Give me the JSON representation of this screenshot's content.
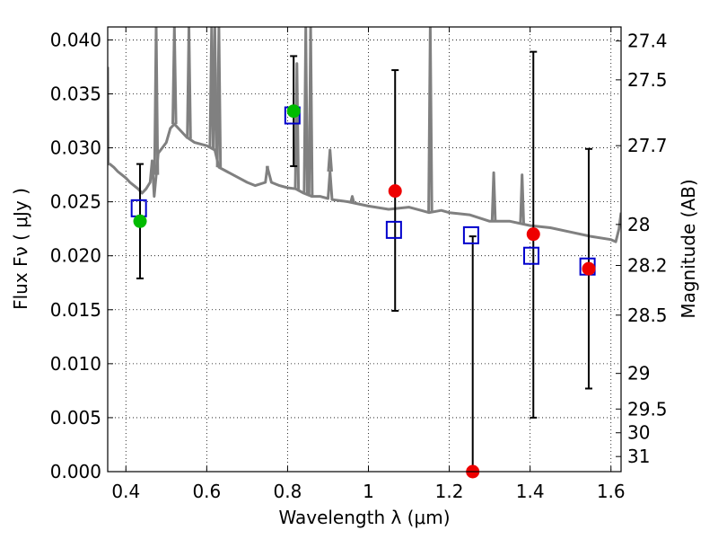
{
  "chart_data": {
    "type": "scatter",
    "xlabel": "Wavelength  λ (μm)",
    "ylabel": "Flux  Fν  ( μJy )",
    "ylabel_right": "Magnitude (AB)",
    "xlim": [
      0.355,
      1.625
    ],
    "ylim": [
      0.0,
      0.0412
    ],
    "grid": true,
    "x_ticks": [
      0.4,
      0.6,
      0.8,
      1.0,
      1.2,
      1.4,
      1.6
    ],
    "x_tick_labels": [
      "0.4",
      "0.6",
      "0.8",
      "1",
      "1.2",
      "1.4",
      "1.6"
    ],
    "y_ticks": [
      0.0,
      0.005,
      0.01,
      0.015,
      0.02,
      0.025,
      0.03,
      0.035,
      0.04
    ],
    "y_tick_labels": [
      "0.000",
      "0.005",
      "0.010",
      "0.015",
      "0.020",
      "0.025",
      "0.030",
      "0.035",
      "0.040"
    ],
    "mag_ticks": [
      {
        "label": "27.4",
        "flux": 0.0399
      },
      {
        "label": "27.5",
        "flux": 0.0363
      },
      {
        "label": "27.7",
        "flux": 0.0302
      },
      {
        "label": "28",
        "flux": 0.0229
      },
      {
        "label": "28.2",
        "flux": 0.0191
      },
      {
        "label": "28.5",
        "flux": 0.0145
      },
      {
        "label": "29",
        "flux": 0.0091
      },
      {
        "label": "29.5",
        "flux": 0.0058
      },
      {
        "label": "30",
        "flux": 0.0036
      },
      {
        "label": "31",
        "flux": 0.0014
      }
    ],
    "colors": {
      "model": "#808080",
      "model_photometry": "#0000cc",
      "detected": "#00bb00",
      "nondetected": "#ee0000",
      "errorbar": "#000000"
    },
    "model_spectrum": {
      "x": [
        0.355,
        0.356,
        0.36,
        0.37,
        0.38,
        0.39,
        0.4,
        0.41,
        0.42,
        0.43,
        0.44,
        0.45,
        0.455,
        0.46,
        0.465,
        0.47,
        0.48,
        0.49,
        0.5,
        0.51,
        0.52,
        0.53,
        0.55,
        0.57,
        0.6,
        0.62,
        0.63,
        0.65,
        0.68,
        0.7,
        0.72,
        0.745,
        0.75,
        0.76,
        0.78,
        0.8,
        0.82,
        0.84,
        0.86,
        0.88,
        0.9,
        0.905,
        0.91,
        0.95,
        1.0,
        1.05,
        1.1,
        1.13,
        1.15,
        1.18,
        1.2,
        1.25,
        1.3,
        1.35,
        1.4,
        1.45,
        1.5,
        1.55,
        1.6,
        1.612,
        1.62,
        1.625
      ],
      "y": [
        0.0375,
        0.0285,
        0.0285,
        0.0282,
        0.0278,
        0.0275,
        0.0272,
        0.0268,
        0.0265,
        0.0262,
        0.0258,
        0.0262,
        0.0265,
        0.0268,
        0.0288,
        0.0255,
        0.0295,
        0.03,
        0.0305,
        0.0318,
        0.0322,
        0.0318,
        0.031,
        0.0305,
        0.0302,
        0.0298,
        0.0282,
        0.0278,
        0.0272,
        0.0268,
        0.0265,
        0.0268,
        0.0282,
        0.0268,
        0.0265,
        0.0263,
        0.0262,
        0.0258,
        0.0255,
        0.0255,
        0.0253,
        0.0278,
        0.0252,
        0.025,
        0.0246,
        0.0243,
        0.0245,
        0.0242,
        0.024,
        0.0242,
        0.024,
        0.0238,
        0.0232,
        0.0232,
        0.0228,
        0.0226,
        0.0222,
        0.0218,
        0.0215,
        0.0213,
        0.0225,
        0.024
      ]
    },
    "model_spikes": [
      {
        "x": 0.475,
        "y": 0.0412
      },
      {
        "x": 0.52,
        "y": 0.0412
      },
      {
        "x": 0.556,
        "y": 0.0412
      },
      {
        "x": 0.612,
        "y": 0.0412
      },
      {
        "x": 0.62,
        "y": 0.0412
      },
      {
        "x": 0.63,
        "y": 0.0412
      },
      {
        "x": 0.75,
        "y": 0.0282
      },
      {
        "x": 0.823,
        "y": 0.0378
      },
      {
        "x": 0.845,
        "y": 0.0412
      },
      {
        "x": 0.857,
        "y": 0.0412
      },
      {
        "x": 0.905,
        "y": 0.0298
      },
      {
        "x": 0.96,
        "y": 0.0255
      },
      {
        "x": 1.153,
        "y": 0.0412
      },
      {
        "x": 1.31,
        "y": 0.0277
      },
      {
        "x": 1.38,
        "y": 0.0275
      }
    ],
    "series": [
      {
        "x": [
          0.432,
          0.812,
          1.063,
          1.254,
          1.403,
          1.542
        ],
        "values": [
          0.0244,
          0.033,
          0.0224,
          0.0219,
          0.02,
          0.019
        ]
      },
      {
        "x": [
          0.435,
          0.815
        ],
        "values": [
          0.0232,
          0.0334
        ]
      },
      {
        "x": [
          1.066,
          1.258,
          1.408,
          1.545
        ],
        "values": [
          0.026,
          0.0,
          0.022,
          0.0188
        ]
      }
    ],
    "errorbars": [
      {
        "x": 0.435,
        "lo": 0.0179,
        "hi": 0.0285
      },
      {
        "x": 0.815,
        "lo": 0.0283,
        "hi": 0.0385
      },
      {
        "x": 1.066,
        "lo": 0.0149,
        "hi": 0.0372
      },
      {
        "x": 1.258,
        "lo": 0.0,
        "hi": 0.0218
      },
      {
        "x": 1.408,
        "lo": 0.005,
        "hi": 0.0389
      },
      {
        "x": 1.545,
        "lo": 0.0077,
        "hi": 0.0299
      }
    ]
  }
}
